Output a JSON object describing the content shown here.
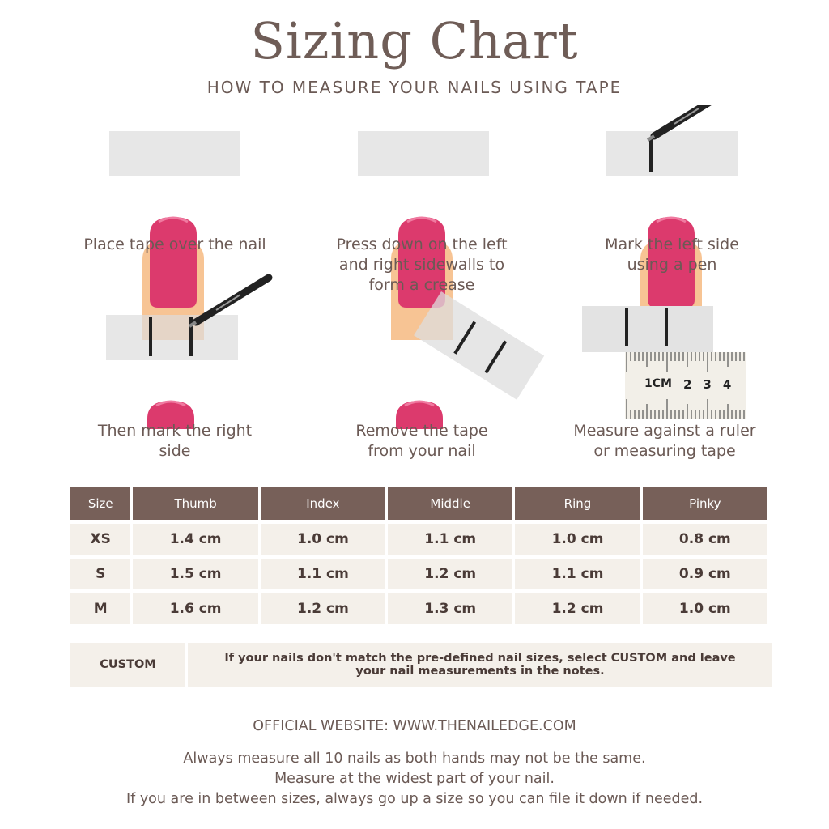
{
  "title": "Sizing Chart",
  "subtitle": "HOW TO MEASURE YOUR NAILS USING TAPE",
  "steps": [
    {
      "text": "Place tape over the nail"
    },
    {
      "text": "Press down on the left and right sidewalls to form a crease"
    },
    {
      "text": "Mark the left side using a pen"
    },
    {
      "text": "Then mark the right side"
    },
    {
      "text": "Remove the tape from your nail"
    },
    {
      "text": "Measure against a ruler or measuring tape"
    }
  ],
  "ruler": {
    "labels": [
      "1CM",
      "2",
      "3",
      "4"
    ]
  },
  "table": {
    "headers": [
      "Size",
      "Thumb",
      "Index",
      "Middle",
      "Ring",
      "Pinky"
    ],
    "rows": [
      [
        "XS",
        "1.4 cm",
        "1.0 cm",
        "1.1 cm",
        "1.0 cm",
        "0.8 cm"
      ],
      [
        "S",
        "1.5 cm",
        "1.1 cm",
        "1.2 cm",
        "1.1 cm",
        "0.9 cm"
      ],
      [
        "M",
        "1.6 cm",
        "1.2 cm",
        "1.3 cm",
        "1.2 cm",
        "1.0 cm"
      ]
    ]
  },
  "custom": {
    "label": "CUSTOM",
    "text": "If your nails don't match the pre-defined nail sizes, select CUSTOM and leave your nail measurements in the notes."
  },
  "footer": {
    "website": "OFFICIAL WEBSITE: WWW.THENAILEDGE.COM",
    "notes": [
      "Always measure all 10 nails as both hands may not be the same.",
      "Measure at the widest part of your nail.",
      "If you are in between sizes, always go up a size so you can file it down if needed."
    ]
  },
  "colors": {
    "header": "#776059",
    "cell": "#f4f0ea",
    "nail": "#dc3a6d",
    "skin": "#f7c494",
    "tape": "#e3e3e3"
  }
}
